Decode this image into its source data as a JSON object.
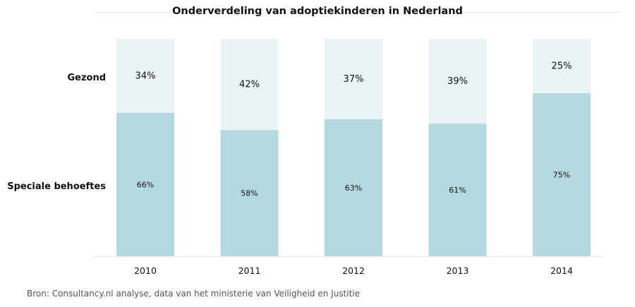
{
  "chart_data": {
    "type": "bar",
    "stacked": true,
    "title": "Onderverdeling van adoptiekinderen in Nederland",
    "categories": [
      "2010",
      "2011",
      "2012",
      "2013",
      "2014"
    ],
    "series": [
      {
        "name": "Speciale behoeftes",
        "values": [
          66,
          58,
          63,
          61,
          75
        ],
        "color": "#b5d9e0"
      },
      {
        "name": "Gezond",
        "values": [
          34,
          42,
          37,
          39,
          25
        ],
        "color": "#eaf4f6"
      }
    ],
    "value_labels": {
      "Speciale behoeftes": [
        "66%",
        "58%",
        "63%",
        "61%",
        "75%"
      ],
      "Gezond": [
        "34%",
        "42%",
        "37%",
        "39%",
        "25%"
      ]
    },
    "ylim": [
      0,
      100
    ],
    "xlabel": "",
    "ylabel": "",
    "legend": "left",
    "grid": false
  },
  "source": "Bron: Consultancy.nl analyse, data van het ministerie van Veiligheid en Justitie"
}
